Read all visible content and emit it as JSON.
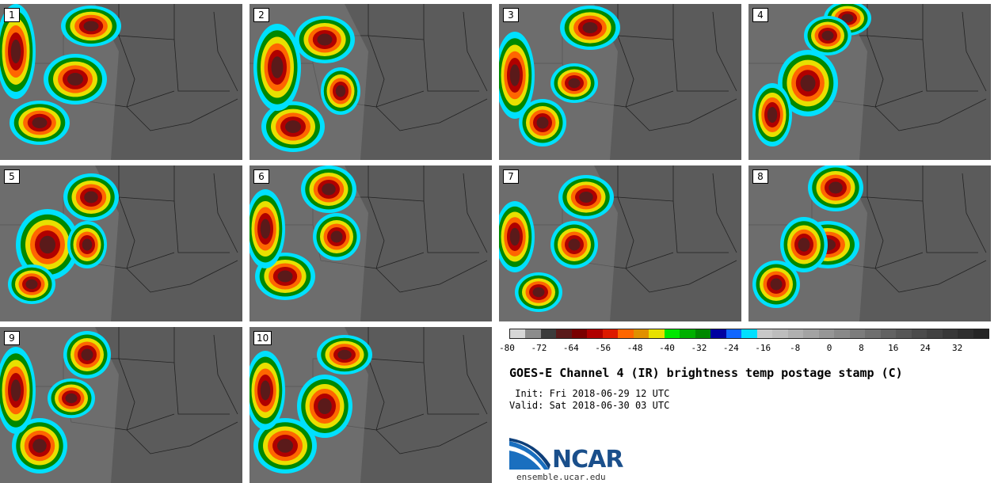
{
  "panels": [
    {
      "label": "1"
    },
    {
      "label": "2"
    },
    {
      "label": "3"
    },
    {
      "label": "4"
    },
    {
      "label": "5"
    },
    {
      "label": "6"
    },
    {
      "label": "7"
    },
    {
      "label": "8"
    },
    {
      "label": "9"
    },
    {
      "label": "10"
    }
  ],
  "colorbar": {
    "colors": [
      "#d7d7d7",
      "#8c8c8c",
      "#3c3c3c",
      "#5a1a1a",
      "#7a0000",
      "#b00000",
      "#dd1a00",
      "#ff6600",
      "#e09000",
      "#e8e000",
      "#00e800",
      "#00b000",
      "#008800",
      "#0000a0",
      "#1066ff",
      "#00e0ff",
      "#c8c8c8",
      "#bdbdbd",
      "#b0b0b0",
      "#a3a3a3",
      "#969696",
      "#898989",
      "#7c7c7c",
      "#6f6f6f",
      "#626262",
      "#575757",
      "#4c4c4c",
      "#424242",
      "#383838",
      "#2f2f2f",
      "#262626"
    ],
    "ticks": [
      "-80",
      "-72",
      "-64",
      "-56",
      "-48",
      "-40",
      "-32",
      "-24",
      "-16",
      "-8",
      "0",
      "8",
      "16",
      "24",
      "32"
    ]
  },
  "title": "GOES-E Channel 4 (IR) brightness temp postage stamp (C)",
  "init": " Init: Fri 2018-06-29 12 UTC",
  "valid": "Valid: Sat 2018-06-30 03 UTC",
  "logo_text": "NCAR",
  "url": "ensemble.ucar.edu"
}
